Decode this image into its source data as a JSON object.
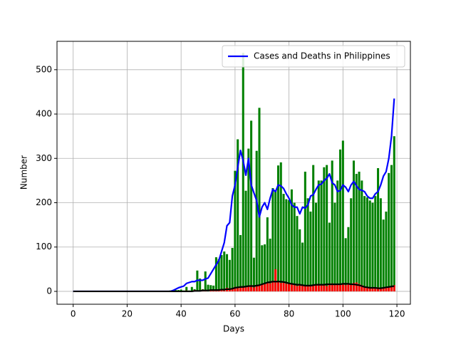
{
  "chart_data": {
    "type": "bar",
    "xlabel": "Days",
    "ylabel": "Number",
    "xlim": [
      -6,
      125
    ],
    "ylim": [
      -29,
      564
    ],
    "xticks": [
      0,
      20,
      40,
      60,
      80,
      100,
      120
    ],
    "yticks": [
      0,
      100,
      200,
      300,
      400,
      500
    ],
    "grid": true,
    "legend": "upper right",
    "x": [
      0,
      1,
      2,
      3,
      4,
      5,
      6,
      7,
      8,
      9,
      10,
      11,
      12,
      13,
      14,
      15,
      16,
      17,
      18,
      19,
      20,
      21,
      22,
      23,
      24,
      25,
      26,
      27,
      28,
      29,
      30,
      31,
      32,
      33,
      34,
      35,
      36,
      37,
      38,
      39,
      40,
      41,
      42,
      43,
      44,
      45,
      46,
      47,
      48,
      49,
      50,
      51,
      52,
      53,
      54,
      55,
      56,
      57,
      58,
      59,
      60,
      61,
      62,
      63,
      64,
      65,
      66,
      67,
      68,
      69,
      70,
      71,
      72,
      73,
      74,
      75,
      76,
      77,
      78,
      79,
      80,
      81,
      82,
      83,
      84,
      85,
      86,
      87,
      88,
      89,
      90,
      91,
      92,
      93,
      94,
      95,
      96,
      97,
      98,
      99,
      100,
      101,
      102,
      103,
      104,
      105,
      106,
      107,
      108,
      109,
      110,
      111,
      112,
      113,
      114,
      115,
      116,
      117,
      118,
      119
    ],
    "series": [
      {
        "type": "bar",
        "color": "#008000",
        "values": [
          0,
          0,
          0,
          0,
          0,
          0,
          0,
          0,
          0,
          0,
          0,
          0,
          0,
          0,
          0,
          0,
          0,
          0,
          0,
          0,
          0,
          0,
          0,
          0,
          0,
          0,
          0,
          0,
          0,
          0,
          0,
          0,
          0,
          0,
          0,
          0,
          2,
          1,
          3,
          3,
          4,
          2,
          10,
          2,
          10,
          5,
          47,
          29,
          5,
          45,
          15,
          14,
          13,
          77,
          73,
          82,
          90,
          84,
          71,
          98,
          272,
          343,
          127,
          538,
          227,
          322,
          385,
          76,
          317,
          414,
          104,
          106,
          167,
          119,
          233,
          227,
          284,
          291,
          220,
          208,
          206,
          230,
          200,
          170,
          140,
          110,
          270,
          210,
          180,
          285,
          200,
          250,
          250,
          280,
          285,
          155,
          295,
          200,
          250,
          320,
          340,
          120,
          145,
          210,
          295,
          265,
          270,
          250,
          215,
          212,
          205,
          200,
          215,
          278,
          210,
          162,
          180,
          267,
          285,
          350
        ]
      },
      {
        "type": "bar",
        "color": "#ff0000",
        "values": [
          0,
          0,
          0,
          0,
          0,
          0,
          0,
          0,
          0,
          0,
          0,
          0,
          0,
          0,
          0,
          0,
          0,
          0,
          0,
          0,
          0,
          0,
          0,
          0,
          0,
          0,
          0,
          0,
          0,
          0,
          0,
          0,
          0,
          0,
          0,
          0,
          0,
          0,
          0,
          0,
          1,
          0,
          2,
          1,
          0,
          3,
          1,
          0,
          4,
          2,
          0,
          2,
          3,
          4,
          5,
          3,
          2,
          8,
          7,
          5,
          10,
          7,
          8,
          12,
          9,
          11,
          14,
          9,
          12,
          13,
          15,
          16,
          20,
          18,
          24,
          50,
          22,
          19,
          21,
          17,
          18,
          16,
          14,
          12,
          14,
          13,
          12,
          11,
          14,
          15,
          16,
          17,
          14,
          15,
          12,
          16,
          18,
          14,
          15,
          17,
          18,
          14,
          16,
          15,
          19,
          20,
          17,
          14,
          10,
          9,
          8,
          7,
          8,
          9,
          8,
          7,
          10,
          11,
          12,
          14
        ]
      },
      {
        "type": "line",
        "name": "Cases and Deaths in Philippines",
        "color": "#0000ff",
        "values": [
          0,
          0,
          0,
          0,
          0,
          0,
          0,
          0,
          0,
          0,
          0,
          0,
          0,
          0,
          0,
          0,
          0,
          0,
          0,
          0,
          0,
          0,
          0,
          0,
          0,
          0,
          0,
          0,
          0,
          0,
          0,
          0,
          0,
          0,
          0,
          0,
          0,
          2,
          5,
          8,
          10,
          12,
          18,
          20,
          22,
          22,
          25,
          25,
          25,
          28,
          30,
          40,
          50,
          60,
          70,
          90,
          110,
          148,
          155,
          215,
          240,
          280,
          318,
          295,
          262,
          300,
          240,
          222,
          205,
          168,
          190,
          200,
          185,
          210,
          230,
          225,
          240,
          238,
          232,
          220,
          210,
          195,
          190,
          190,
          175,
          190,
          188,
          195,
          215,
          218,
          230,
          240,
          242,
          250,
          255,
          265,
          245,
          240,
          225,
          228,
          240,
          235,
          225,
          240,
          248,
          238,
          230,
          228,
          225,
          215,
          210,
          210,
          220,
          225,
          240,
          260,
          270,
          300,
          350,
          435
        ]
      },
      {
        "type": "line",
        "color": "#000000",
        "values": [
          0,
          0,
          0,
          0,
          0,
          0,
          0,
          0,
          0,
          0,
          0,
          0,
          0,
          0,
          0,
          0,
          0,
          0,
          0,
          0,
          0,
          0,
          0,
          0,
          0,
          0,
          0,
          0,
          0,
          0,
          0,
          0,
          0,
          0,
          0,
          0,
          0,
          0,
          0,
          0,
          0,
          0,
          0,
          0,
          0,
          1,
          1,
          1,
          2,
          2,
          2,
          3,
          3,
          3,
          3,
          4,
          4,
          5,
          5,
          6,
          8,
          9,
          10,
          10,
          11,
          12,
          12,
          12,
          13,
          14,
          16,
          18,
          20,
          21,
          22,
          22,
          22,
          22,
          21,
          20,
          18,
          17,
          16,
          15,
          15,
          14,
          13,
          13,
          13,
          14,
          15,
          15,
          15,
          15,
          16,
          16,
          16,
          16,
          16,
          16,
          17,
          17,
          17,
          16,
          16,
          15,
          14,
          12,
          10,
          9,
          8,
          8,
          8,
          7,
          7,
          8,
          9,
          10,
          11,
          12
        ]
      }
    ]
  }
}
